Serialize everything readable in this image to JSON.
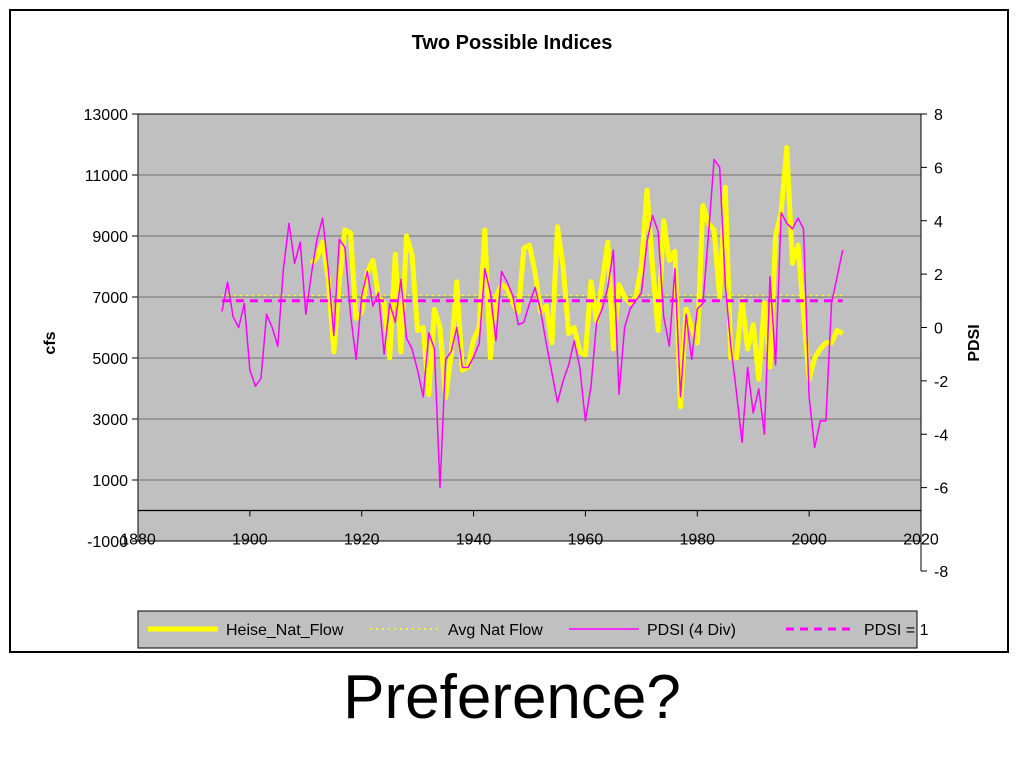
{
  "slide": {
    "subtitle": "Preference?"
  },
  "colors": {
    "plot_background": "#c0c0c0",
    "gridline": "#808080",
    "flow": "#ffff00",
    "avg": "#ffff00",
    "pdsi": "#ff00ff",
    "pdsi_ref": "#ff00ff"
  },
  "chart_data": {
    "type": "line",
    "title": "Two Possible Indices",
    "xlabel": "",
    "ylabel": "cfs",
    "y2label": "PDSI",
    "xlim": [
      1880,
      2020
    ],
    "ylim": [
      -1000,
      13000
    ],
    "y2lim": [
      -8,
      8
    ],
    "x_ticks": [
      "1880",
      "1900",
      "1920",
      "1940",
      "1960",
      "1980",
      "2000",
      "2020"
    ],
    "y_ticks": [
      "-1000",
      "1000",
      "3000",
      "5000",
      "7000",
      "9000",
      "11000",
      "13000"
    ],
    "y2_ticks": [
      "-8",
      "-6",
      "-4",
      "-2",
      "0",
      "2",
      "4",
      "6",
      "8"
    ],
    "grid": "horizontal major gridlines",
    "legend_position": "bottom",
    "series": [
      {
        "name": "Heise_Nat_Flow",
        "axis": "left",
        "style": "thick solid",
        "x": [
          1911,
          1912,
          1913,
          1914,
          1915,
          1916,
          1917,
          1918,
          1919,
          1920,
          1921,
          1922,
          1923,
          1924,
          1925,
          1926,
          1927,
          1928,
          1929,
          1930,
          1931,
          1932,
          1933,
          1934,
          1935,
          1936,
          1937,
          1938,
          1939,
          1940,
          1941,
          1942,
          1943,
          1944,
          1945,
          1946,
          1947,
          1948,
          1949,
          1950,
          1951,
          1952,
          1953,
          1954,
          1955,
          1956,
          1957,
          1958,
          1959,
          1960,
          1961,
          1962,
          1963,
          1964,
          1965,
          1966,
          1967,
          1968,
          1969,
          1970,
          1971,
          1972,
          1973,
          1974,
          1975,
          1976,
          1977,
          1978,
          1979,
          1980,
          1981,
          1982,
          1983,
          1984,
          1985,
          1986,
          1987,
          1988,
          1989,
          1990,
          1991,
          1992,
          1993,
          1994,
          1995,
          1996,
          1997,
          1998,
          1999,
          2000,
          2001,
          2002,
          2003,
          2004,
          2005,
          2006
        ],
        "values": [
          8100,
          8300,
          8800,
          7600,
          5200,
          7500,
          9200,
          9100,
          6300,
          6500,
          7800,
          8200,
          7000,
          6800,
          5000,
          8400,
          5200,
          9000,
          8400,
          5900,
          6000,
          3800,
          6600,
          6000,
          3700,
          5100,
          7500,
          4600,
          4700,
          5600,
          6000,
          9200,
          5000,
          7000,
          7400,
          7300,
          6800,
          6500,
          8600,
          8700,
          7800,
          6500,
          6700,
          5500,
          9300,
          8000,
          5800,
          6000,
          5200,
          5100,
          7500,
          6200,
          7500,
          8800,
          5300,
          7400,
          7000,
          6800,
          7000,
          8000,
          10500,
          8000,
          5900,
          9500,
          8200,
          8500,
          3400,
          6600,
          6000,
          5500,
          10000,
          9400,
          9200,
          7000,
          10600,
          5000,
          5000,
          6900,
          5300,
          6100,
          4300,
          6800,
          4700,
          9000,
          9800,
          11900,
          8100,
          8700,
          6500,
          4300,
          5000,
          5300,
          5500,
          5500,
          5900,
          5800
        ]
      },
      {
        "name": "Avg Nat Flow",
        "axis": "left",
        "style": "dotted",
        "x": [
          1895,
          2006
        ],
        "values": [
          7050,
          7050
        ]
      },
      {
        "name": "PDSI (4 Div)",
        "axis": "right",
        "style": "thin solid",
        "x": [
          1895,
          1896,
          1897,
          1898,
          1899,
          1900,
          1901,
          1902,
          1903,
          1904,
          1905,
          1906,
          1907,
          1908,
          1909,
          1910,
          1911,
          1912,
          1913,
          1914,
          1915,
          1916,
          1917,
          1918,
          1919,
          1920,
          1921,
          1922,
          1923,
          1924,
          1925,
          1926,
          1927,
          1928,
          1929,
          1930,
          1931,
          1932,
          1933,
          1934,
          1935,
          1936,
          1937,
          1938,
          1939,
          1940,
          1941,
          1942,
          1943,
          1944,
          1945,
          1946,
          1947,
          1948,
          1949,
          1950,
          1951,
          1952,
          1953,
          1954,
          1955,
          1956,
          1957,
          1958,
          1959,
          1960,
          1961,
          1962,
          1963,
          1964,
          1965,
          1966,
          1967,
          1968,
          1969,
          1970,
          1971,
          1972,
          1973,
          1974,
          1975,
          1976,
          1977,
          1978,
          1979,
          1980,
          1981,
          1982,
          1983,
          1984,
          1985,
          1986,
          1987,
          1988,
          1989,
          1990,
          1991,
          1992,
          1993,
          1994,
          1995,
          1996,
          1997,
          1998,
          1999,
          2000,
          2001,
          2002,
          2003,
          2004,
          2005,
          2006
        ],
        "values": [
          0.6,
          1.7,
          0.4,
          0.0,
          0.9,
          -1.6,
          -2.2,
          -1.9,
          0.5,
          0.0,
          -0.7,
          2.2,
          3.9,
          2.4,
          3.2,
          0.5,
          2.0,
          3.3,
          4.1,
          2.2,
          -0.3,
          3.3,
          3.0,
          0.5,
          -1.2,
          1.2,
          2.1,
          0.8,
          1.3,
          -1.0,
          0.9,
          0.2,
          1.8,
          -0.4,
          -0.8,
          -1.6,
          -2.6,
          -0.2,
          -0.8,
          -6.0,
          -1.2,
          -0.9,
          0.0,
          -1.5,
          -1.5,
          -1.1,
          -0.6,
          2.2,
          1.3,
          -0.5,
          2.1,
          1.7,
          1.2,
          0.1,
          0.2,
          0.9,
          1.5,
          0.6,
          -0.6,
          -1.7,
          -2.8,
          -2.0,
          -1.4,
          -0.5,
          -1.5,
          -3.5,
          -2.2,
          0.2,
          0.7,
          1.5,
          2.9,
          -2.5,
          0.0,
          0.7,
          1.0,
          1.3,
          3.2,
          4.2,
          3.6,
          0.4,
          -0.7,
          2.2,
          -2.6,
          0.5,
          -1.2,
          0.7,
          0.9,
          3.5,
          6.3,
          6.0,
          1.6,
          -0.7,
          -2.4,
          -4.3,
          -1.5,
          -3.2,
          -2.3,
          -4.0,
          1.9,
          -1.4,
          4.3,
          3.9,
          3.7,
          4.1,
          3.7,
          -2.6,
          -4.5,
          -3.5,
          -3.5,
          0.9,
          1.9,
          2.9
        ]
      },
      {
        "name": "PDSI = 1",
        "axis": "right",
        "style": "thick dashed",
        "x": [
          1895,
          2006
        ],
        "values": [
          1,
          1
        ]
      }
    ]
  }
}
